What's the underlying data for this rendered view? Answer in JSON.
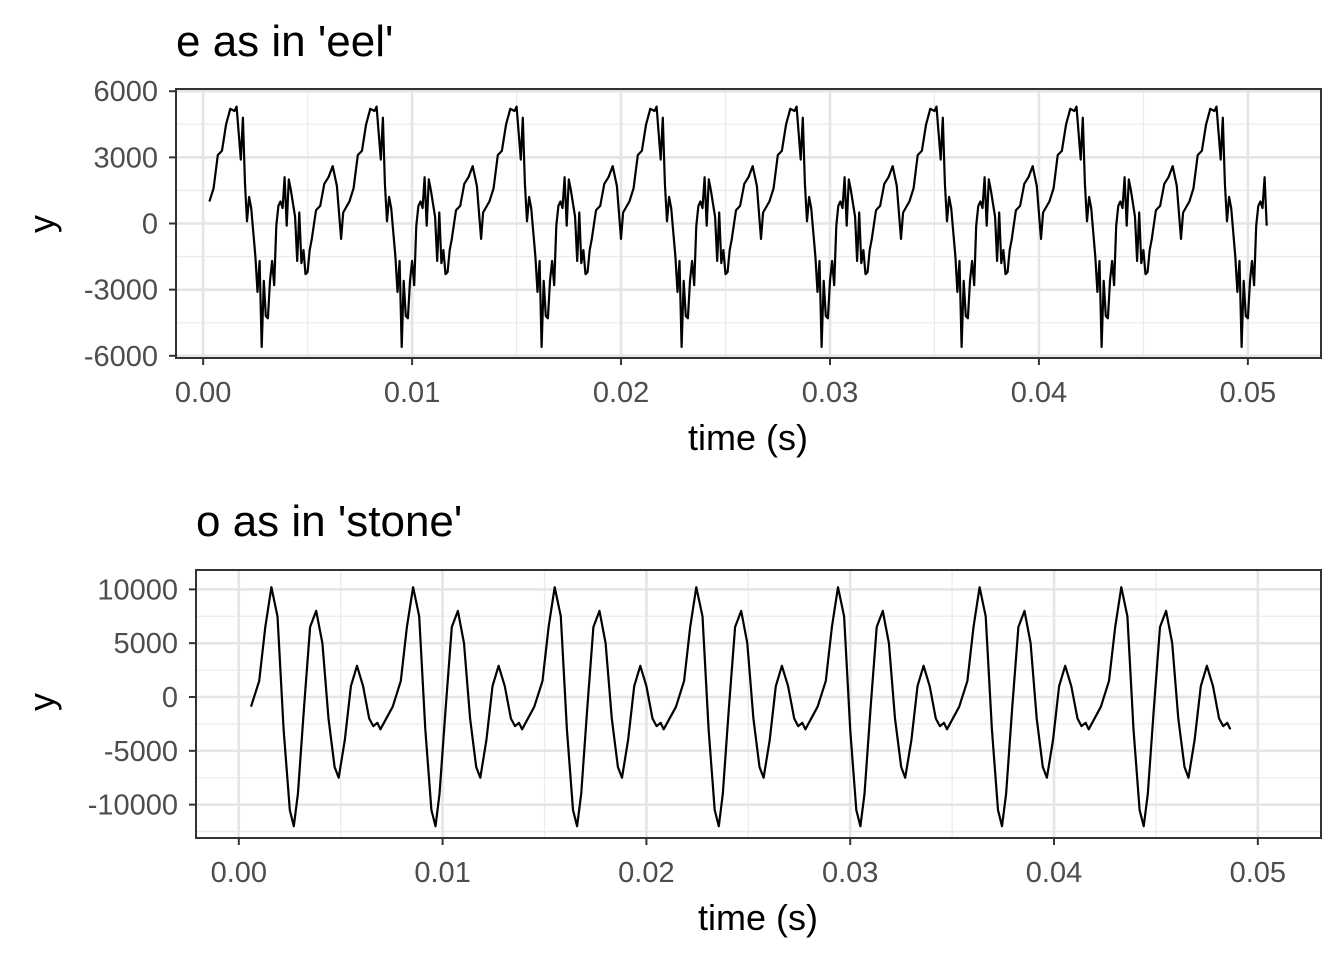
{
  "chart_data": [
    {
      "type": "line",
      "title": "e as in 'eel'",
      "xlabel": "time (s)",
      "ylabel": "y",
      "xlim": [
        -0.0013,
        0.0535
      ],
      "ylim": [
        -6100,
        6100
      ],
      "grid": true,
      "x_ticks": [
        0.0,
        0.01,
        0.02,
        0.03,
        0.04,
        0.05
      ],
      "x_tick_labels": [
        "0.00",
        "0.01",
        "0.02",
        "0.03",
        "0.04",
        "0.05"
      ],
      "y_ticks": [
        -6000,
        -3000,
        0,
        3000,
        6000
      ],
      "y_tick_labels": [
        "-6000",
        "-3000",
        "0",
        "3000",
        "6000"
      ],
      "period_s": 0.0067,
      "x_range": [
        0.0001,
        0.051
      ],
      "series": [
        {
          "period_points": [
            [
              0.0,
              500
            ],
            [
              0.0003,
              1000
            ],
            [
              0.0005,
              1600
            ],
            [
              0.0007,
              3100
            ],
            [
              0.0009,
              3300
            ],
            [
              0.0011,
              4500
            ],
            [
              0.0013,
              5200
            ],
            [
              0.0015,
              5100
            ],
            [
              0.0016,
              5300
            ],
            [
              0.0018,
              2900
            ],
            [
              0.0019,
              4800
            ],
            [
              0.002,
              1800
            ],
            [
              0.0021,
              100
            ],
            [
              0.0022,
              1200
            ],
            [
              0.0023,
              700
            ],
            [
              0.0025,
              -1500
            ],
            [
              0.0026,
              -3100
            ],
            [
              0.0027,
              -1700
            ],
            [
              0.0028,
              -5600
            ],
            [
              0.0029,
              -2600
            ],
            [
              0.003,
              -4200
            ],
            [
              0.0031,
              -4300
            ],
            [
              0.0032,
              -2600
            ],
            [
              0.0033,
              -1700
            ],
            [
              0.0034,
              -2800
            ],
            [
              0.0035,
              -100
            ],
            [
              0.0036,
              800
            ],
            [
              0.0037,
              1000
            ],
            [
              0.0038,
              700
            ],
            [
              0.0039,
              2100
            ],
            [
              0.004,
              -100
            ],
            [
              0.0041,
              2000
            ],
            [
              0.0042,
              1500
            ],
            [
              0.0043,
              900
            ],
            [
              0.0044,
              300
            ],
            [
              0.0045,
              -1700
            ],
            [
              0.0046,
              500
            ],
            [
              0.0047,
              -1800
            ],
            [
              0.0048,
              -1200
            ],
            [
              0.0049,
              -2300
            ],
            [
              0.005,
              -2200
            ],
            [
              0.0051,
              -1200
            ],
            [
              0.0052,
              -700
            ],
            [
              0.0054,
              600
            ],
            [
              0.0056,
              800
            ],
            [
              0.0058,
              1800
            ],
            [
              0.006,
              2100
            ],
            [
              0.0062,
              2600
            ],
            [
              0.0064,
              1700
            ],
            [
              0.0066,
              -700
            ],
            [
              0.0067,
              500
            ]
          ]
        }
      ]
    },
    {
      "type": "line",
      "title": "o as in 'stone'",
      "xlabel": "time (s)",
      "ylabel": "y",
      "xlim": [
        -0.0021,
        0.0531
      ],
      "ylim": [
        -13100,
        11800
      ],
      "grid": true,
      "x_ticks": [
        0.0,
        0.01,
        0.02,
        0.03,
        0.04,
        0.05
      ],
      "x_tick_labels": [
        "0.00",
        "0.01",
        "0.02",
        "0.03",
        "0.04",
        "0.05"
      ],
      "y_ticks": [
        -10000,
        -5000,
        0,
        5000,
        10000
      ],
      "y_tick_labels": [
        "-10000",
        "-5000",
        "0",
        "5000",
        "10000"
      ],
      "period_s": 0.00695,
      "x_range": [
        0.0004,
        0.049
      ],
      "series": [
        {
          "period_points": [
            [
              0.0,
              -3000
            ],
            [
              0.0006,
              -900
            ],
            [
              0.001,
              1500
            ],
            [
              0.0013,
              6500
            ],
            [
              0.0016,
              10200
            ],
            [
              0.0019,
              7500
            ],
            [
              0.0022,
              -3000
            ],
            [
              0.0025,
              -10500
            ],
            [
              0.0027,
              -12000
            ],
            [
              0.0029,
              -9000
            ],
            [
              0.0032,
              -1000
            ],
            [
              0.0035,
              6500
            ],
            [
              0.0038,
              8000
            ],
            [
              0.0041,
              5000
            ],
            [
              0.0044,
              -2000
            ],
            [
              0.0047,
              -6500
            ],
            [
              0.0049,
              -7500
            ],
            [
              0.0052,
              -4000
            ],
            [
              0.0055,
              1000
            ],
            [
              0.0058,
              2900
            ],
            [
              0.0061,
              1000
            ],
            [
              0.0064,
              -2000
            ],
            [
              0.0066,
              -2700
            ],
            [
              0.0068,
              -2400
            ],
            [
              0.00695,
              -3000
            ]
          ]
        }
      ]
    }
  ]
}
